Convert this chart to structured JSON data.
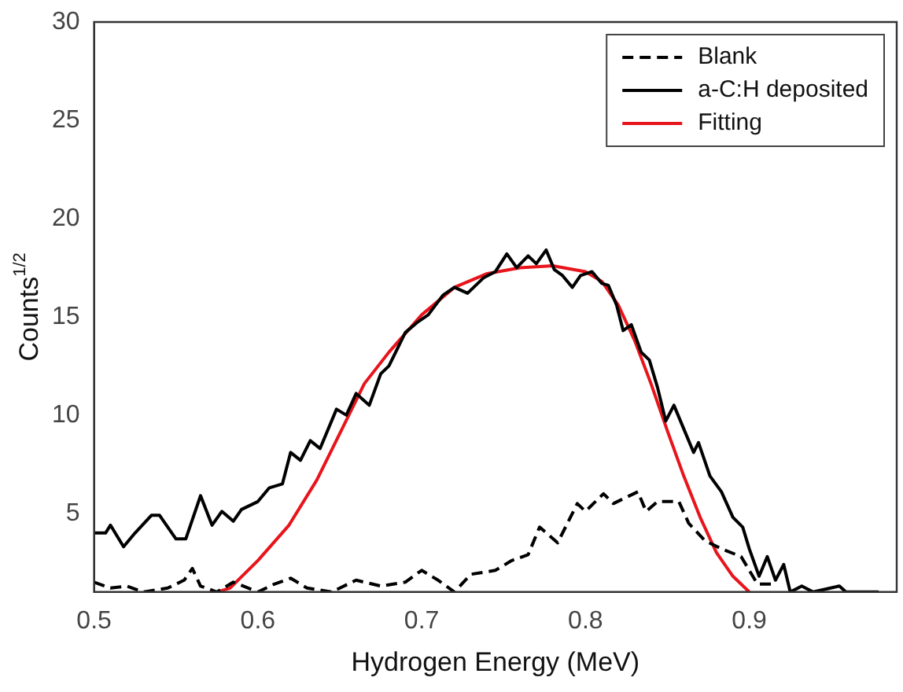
{
  "chart_data": {
    "type": "line",
    "xlabel": "Hydrogen Energy (MeV)",
    "ylabel": "Counts$^{1/2}$",
    "xlim": [
      0.5,
      0.99
    ],
    "xticks": [
      0.5,
      0.6,
      0.7,
      0.8,
      0.9
    ],
    "ylim": [
      1,
      30
    ],
    "yticks": [
      5,
      10,
      15,
      20,
      25,
      30
    ],
    "grid": false,
    "legend": "top right",
    "marker": "none",
    "series": [
      {
        "name": "Blank",
        "color": "#000000",
        "line_style": "dashed",
        "x": [
          0.5,
          0.51,
          0.52,
          0.53,
          0.545,
          0.555,
          0.56,
          0.565,
          0.575,
          0.585,
          0.6,
          0.61,
          0.62,
          0.63,
          0.645,
          0.66,
          0.675,
          0.69,
          0.7,
          0.71,
          0.72,
          0.73,
          0.745,
          0.755,
          0.765,
          0.772,
          0.783,
          0.795,
          0.8,
          0.811,
          0.817,
          0.832,
          0.837,
          0.844,
          0.857,
          0.863,
          0.873,
          0.883,
          0.895,
          0.9,
          0.905,
          0.916
        ],
        "values": [
          1.5,
          1.2,
          1.3,
          1.0,
          1.2,
          1.6,
          2.2,
          1.3,
          1.0,
          1.5,
          1.0,
          1.4,
          1.7,
          1.2,
          1.0,
          1.6,
          1.3,
          1.5,
          2.1,
          1.6,
          1.0,
          1.9,
          2.1,
          2.6,
          2.9,
          4.3,
          3.5,
          5.5,
          5.1,
          6.0,
          5.5,
          6.1,
          5.1,
          5.6,
          5.6,
          4.5,
          3.6,
          3.2,
          2.8,
          2.1,
          1.4,
          1.4
        ]
      },
      {
        "name": "a-C:H deposited",
        "color": "#000000",
        "line_style": "solid",
        "x": [
          0.5,
          0.507,
          0.51,
          0.518,
          0.525,
          0.535,
          0.54,
          0.55,
          0.556,
          0.565,
          0.572,
          0.578,
          0.585,
          0.59,
          0.6,
          0.607,
          0.615,
          0.62,
          0.626,
          0.632,
          0.638,
          0.648,
          0.654,
          0.66,
          0.668,
          0.675,
          0.68,
          0.69,
          0.697,
          0.704,
          0.713,
          0.72,
          0.728,
          0.738,
          0.745,
          0.752,
          0.758,
          0.765,
          0.77,
          0.776,
          0.781,
          0.786,
          0.792,
          0.797,
          0.804,
          0.81,
          0.814,
          0.819,
          0.823,
          0.828,
          0.834,
          0.839,
          0.844,
          0.849,
          0.854,
          0.86,
          0.866,
          0.869,
          0.876,
          0.883,
          0.89,
          0.896,
          0.9,
          0.906,
          0.911,
          0.916,
          0.921,
          0.925,
          0.932,
          0.939,
          0.955,
          0.959,
          0.979
        ],
        "values": [
          4.0,
          4.0,
          4.4,
          3.3,
          4.0,
          4.9,
          4.9,
          3.7,
          3.7,
          5.9,
          4.4,
          5.1,
          4.6,
          5.2,
          5.6,
          6.3,
          6.5,
          8.1,
          7.7,
          8.7,
          8.3,
          10.3,
          10.0,
          11.1,
          10.5,
          12.1,
          12.5,
          14.2,
          14.7,
          15.1,
          16.1,
          16.5,
          16.2,
          17.0,
          17.3,
          18.2,
          17.5,
          18.1,
          17.7,
          18.4,
          17.4,
          17.1,
          16.5,
          17.1,
          17.3,
          16.7,
          16.6,
          15.6,
          14.3,
          14.6,
          13.2,
          12.8,
          11.4,
          9.7,
          10.5,
          9.3,
          8.1,
          8.6,
          6.9,
          6.1,
          4.8,
          4.3,
          3.2,
          1.8,
          2.8,
          1.6,
          2.4,
          1.0,
          1.3,
          1.0,
          1.3,
          1.0,
          1.0
        ]
      },
      {
        "name": "Fitting",
        "color": "#e8141b",
        "line_style": "solid",
        "x": [
          0.575,
          0.583,
          0.6,
          0.619,
          0.636,
          0.652,
          0.665,
          0.68,
          0.7,
          0.72,
          0.74,
          0.76,
          0.78,
          0.8,
          0.81,
          0.82,
          0.83,
          0.84,
          0.85,
          0.86,
          0.87,
          0.88,
          0.89,
          0.9
        ],
        "values": [
          1.0,
          1.2,
          2.6,
          4.4,
          6.7,
          9.4,
          11.6,
          13.2,
          15.1,
          16.5,
          17.2,
          17.5,
          17.6,
          17.3,
          16.8,
          15.6,
          13.8,
          11.6,
          9.2,
          6.9,
          4.8,
          3.0,
          1.8,
          1.0
        ]
      }
    ]
  }
}
